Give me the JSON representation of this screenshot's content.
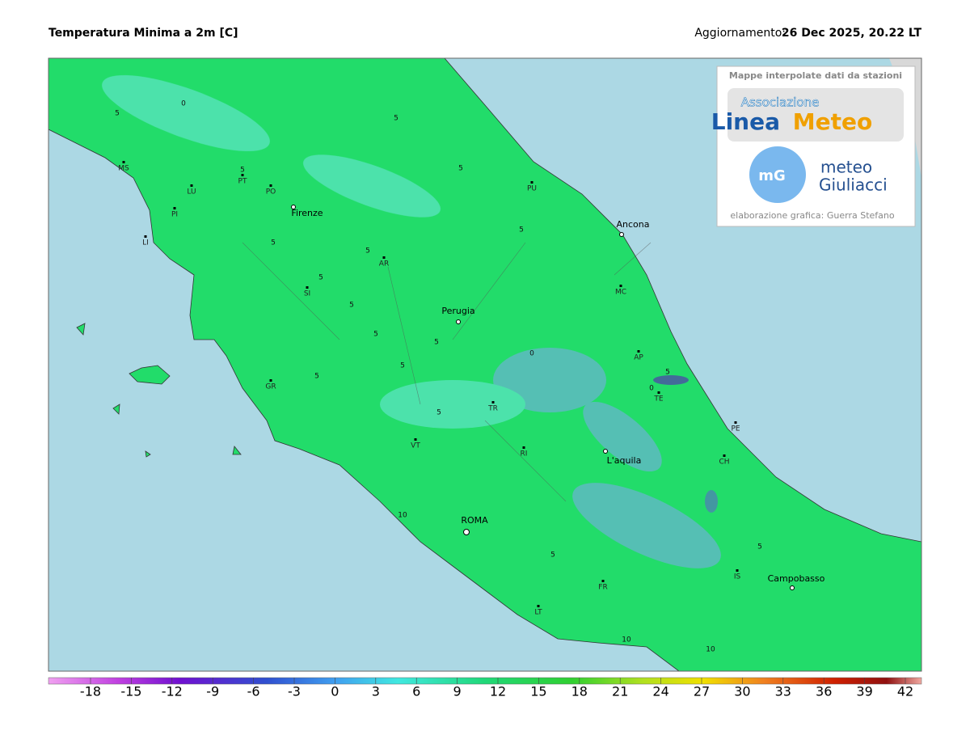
{
  "header": {
    "title": "Temperatura Minima a 2m [C]",
    "update_label": "Aggiornamento:",
    "update_value": "26 Dec 2025, 20.22 LT"
  },
  "map": {
    "cities": [
      "Firenze",
      "Ancona",
      "Perugia",
      "L'aquila",
      "ROMA",
      "Campobasso"
    ],
    "provinces": [
      "MS",
      "LU",
      "PI",
      "LI",
      "PT",
      "PO",
      "AR",
      "SI",
      "GR",
      "PU",
      "MC",
      "AP",
      "TE",
      "PE",
      "CH",
      "TR",
      "RI",
      "VT",
      "FR",
      "LT",
      "IS"
    ],
    "contour_labels": [
      "0",
      "5",
      "5",
      "5",
      "5",
      "5",
      "5",
      "5",
      "5",
      "5",
      "5",
      "5",
      "5",
      "0",
      "0",
      "5",
      "5",
      "10",
      "10",
      "10",
      "5",
      "5",
      "5"
    ]
  },
  "logo": {
    "caption": "Mappe interpolate dati da stazioni",
    "assoc": "Associazione",
    "brand_a": "Linea",
    "brand_b": "Meteo",
    "mg": "mG",
    "meteo": "meteo",
    "giuliacci": "Giuliacci",
    "credit": "elaborazione grafica: Guerra Stefano"
  },
  "legend": {
    "ticks": [
      -18,
      -15,
      -12,
      -9,
      -6,
      -3,
      0,
      3,
      6,
      9,
      12,
      15,
      18,
      21,
      24,
      27,
      30,
      33,
      36,
      39,
      42
    ]
  }
}
